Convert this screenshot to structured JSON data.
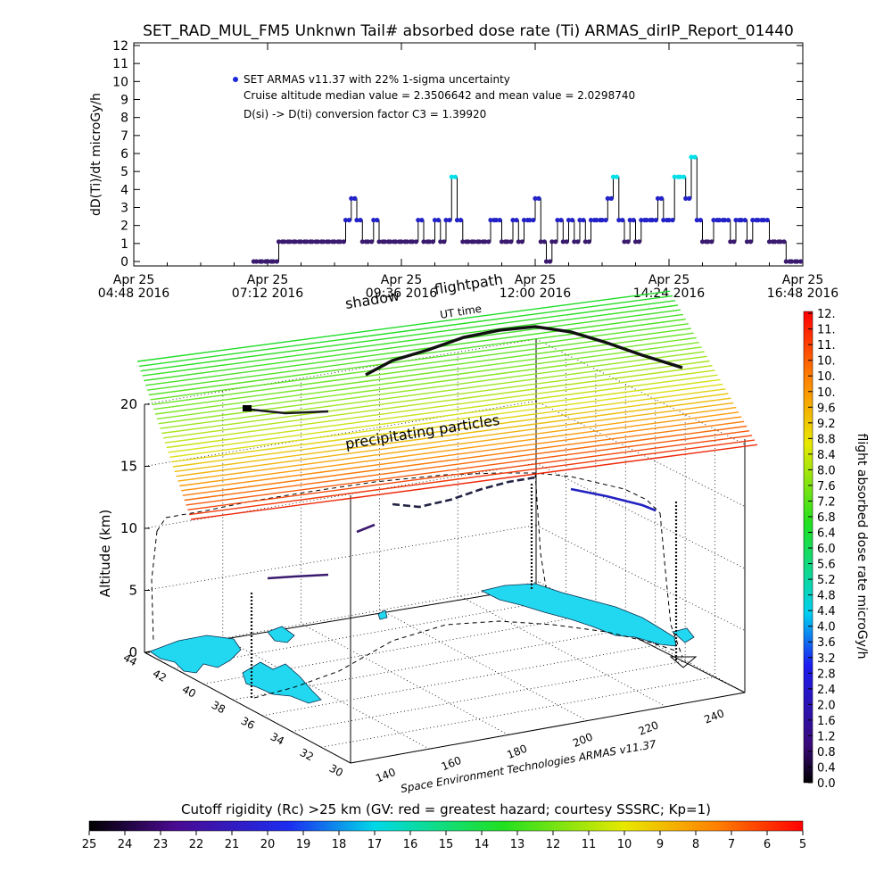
{
  "page": {
    "title": "SET_RAD_MUL_FM5 Unknwn Tail#  absorbed dose rate (Ti) ARMAS_dirIP_Report_01440",
    "credit": "Space Environment Technologies ARMAS v11.37"
  },
  "top_chart": {
    "type": "line",
    "ylabel": "dD(Ti)/dt microGy/h",
    "ylim": [
      0,
      12
    ],
    "yticks": [
      "0",
      "1",
      "2",
      "3",
      "4",
      "5",
      "6",
      "7",
      "8",
      "9",
      "10",
      "11",
      "12"
    ],
    "xticks": [
      {
        "line1": "Apr 25",
        "line2": "04:48 2016"
      },
      {
        "line1": "Apr 25",
        "line2": "07:12 2016"
      },
      {
        "line1": "Apr 25",
        "line2": "09:36 2016"
      },
      {
        "line1": "Apr 25",
        "line2": "12:00 2016"
      },
      {
        "line1": "Apr 25",
        "line2": "14:24 2016"
      },
      {
        "line1": "Apr 25",
        "line2": "16:48 2016"
      }
    ],
    "legend": {
      "series_label": "SET ARMAS v11.37 with 22% 1-sigma uncertainty",
      "stat_line": "Cruise altitude median value = 2.3506642 and mean value = 2.0298740",
      "conversion_line": "D(si) -> D(ti) conversion factor C3 = 1.39920"
    },
    "x_hours": [
      6.95,
      7.0,
      7.1,
      7.2,
      7.3,
      7.4,
      7.5,
      7.6,
      7.7,
      7.8,
      7.9,
      8.0,
      8.1,
      8.2,
      8.3,
      8.4,
      8.5,
      8.6,
      8.7,
      8.8,
      8.9,
      9.0,
      9.1,
      9.2,
      9.3,
      9.4,
      9.5,
      9.6,
      9.7,
      9.8,
      9.9,
      10.0,
      10.1,
      10.2,
      10.3,
      10.4,
      10.5,
      10.6,
      10.7,
      10.8,
      10.9,
      11.0,
      11.1,
      11.2,
      11.3,
      11.4,
      11.5,
      11.6,
      11.7,
      11.8,
      11.9,
      12.0,
      12.1,
      12.2,
      12.3,
      12.4,
      12.5,
      12.6,
      12.7,
      12.8,
      12.9,
      13.0,
      13.1,
      13.2,
      13.3,
      13.4,
      13.5,
      13.6,
      13.7,
      13.8,
      13.9,
      14.0,
      14.1,
      14.2,
      14.3,
      14.4,
      14.5,
      14.6,
      14.7,
      14.8,
      14.9,
      15.0,
      15.1,
      15.2,
      15.3,
      15.4,
      15.5,
      15.6,
      15.7,
      15.8,
      15.9,
      16.0,
      16.1,
      16.2,
      16.3,
      16.4,
      16.5,
      16.6,
      16.7
    ],
    "values": [
      0.0,
      0.0,
      0.0,
      0.0,
      0.0,
      1.1,
      1.1,
      1.1,
      1.1,
      1.1,
      1.1,
      1.1,
      1.1,
      1.1,
      1.1,
      1.1,
      1.1,
      2.3,
      3.5,
      2.3,
      1.1,
      1.1,
      2.3,
      1.1,
      1.1,
      1.1,
      1.1,
      1.1,
      1.1,
      1.1,
      2.3,
      1.1,
      1.1,
      2.3,
      1.1,
      2.3,
      4.7,
      2.3,
      1.1,
      1.1,
      1.1,
      1.1,
      1.1,
      2.3,
      2.3,
      1.1,
      1.1,
      2.3,
      1.1,
      2.3,
      2.3,
      3.5,
      1.1,
      0.0,
      1.1,
      2.3,
      1.1,
      2.3,
      1.1,
      2.3,
      1.1,
      2.3,
      2.3,
      2.3,
      3.5,
      4.7,
      2.3,
      1.1,
      2.3,
      1.1,
      2.3,
      2.3,
      2.3,
      3.5,
      2.3,
      2.3,
      4.7,
      4.7,
      3.5,
      5.8,
      2.3,
      1.1,
      1.1,
      2.3,
      2.3,
      2.3,
      1.1,
      2.3,
      2.3,
      1.1,
      2.3,
      2.3,
      2.3,
      1.1,
      1.1,
      1.1,
      0.0,
      0.0,
      0.0
    ],
    "xrange_hours": [
      4.8,
      16.8
    ]
  },
  "plot3d": {
    "labels": {
      "shadow": "shadow",
      "flightpath": "flightpath",
      "ut_time": "UT time",
      "precipitating": "precipitating particles",
      "zlabel": "Altitude (km)"
    },
    "zticks": [
      "0",
      "5",
      "10",
      "15",
      "20"
    ],
    "lat_ticks": [
      "44",
      "42",
      "40",
      "38",
      "36",
      "34",
      "32",
      "30"
    ],
    "lon_ticks": [
      "140",
      "160",
      "180",
      "200",
      "220",
      "240"
    ],
    "flight_altitudes_km": [
      0.5,
      4,
      9,
      10.5,
      11,
      11.5,
      11.8,
      12,
      12.2,
      12.2,
      12,
      11.5,
      10,
      7,
      3,
      0.5
    ],
    "precip_layers": {
      "alt_min_km": 10.5,
      "alt_max_km": 21,
      "count": 34
    }
  },
  "colorbar_right": {
    "label": "flight absorbed dose rate microGy/h",
    "ticks": [
      "0.0",
      "0.4",
      "0.8",
      "1.2",
      "1.6",
      "2.0",
      "2.4",
      "2.8",
      "3.2",
      "3.6",
      "4.0",
      "4.4",
      "4.8",
      "5.2",
      "5.6",
      "6.0",
      "6.4",
      "6.8",
      "7.2",
      "7.6",
      "8.0",
      "8.4",
      "8.8",
      "9.2",
      "9.6",
      "10.",
      "10.",
      "10.",
      "11.",
      "11.",
      "12."
    ],
    "range": [
      0,
      12
    ]
  },
  "colorbar_bottom": {
    "label": "Cutoff rigidity (Rc) >25 km (GV: red = greatest hazard; courtesy SSSRC; Kp=1)",
    "ticks": [
      "25",
      "24",
      "23",
      "22",
      "21",
      "20",
      "19",
      "18",
      "17",
      "16",
      "15",
      "14",
      "13",
      "12",
      "11",
      "10",
      "9",
      "8",
      "7",
      "6",
      "5"
    ]
  },
  "colors": {
    "dot_low": "#3a1a6e",
    "dot_mid": "#2222c8",
    "dot_high": "#00e0e8",
    "land": "#22d8f0"
  }
}
